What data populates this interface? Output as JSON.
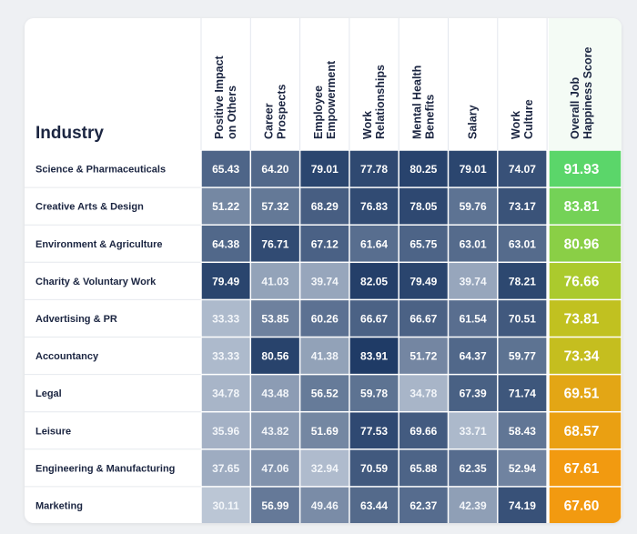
{
  "chart_data": {
    "type": "table",
    "row_header": "Industry",
    "columns": [
      [
        "Positive Impact",
        "on Others"
      ],
      [
        "Career",
        "Prospects"
      ],
      [
        "Employee",
        "Empowerment"
      ],
      [
        "Work",
        "Relationships"
      ],
      [
        "Mental Health",
        "Benefits"
      ],
      [
        "Salary"
      ],
      [
        "Work",
        "Culture"
      ]
    ],
    "score_column": [
      "Overall Job",
      "Happiness Score"
    ],
    "rows": [
      {
        "industry": "Science & Pharmaceuticals",
        "values": [
          "65.43",
          "64.20",
          "79.01",
          "77.78",
          "80.25",
          "79.01",
          "74.07"
        ],
        "score": "91.93"
      },
      {
        "industry": "Creative Arts & Design",
        "values": [
          "51.22",
          "57.32",
          "68.29",
          "76.83",
          "78.05",
          "59.76",
          "73.17"
        ],
        "score": "83.81"
      },
      {
        "industry": "Environment & Agriculture",
        "values": [
          "64.38",
          "76.71",
          "67.12",
          "61.64",
          "65.75",
          "63.01",
          "63.01"
        ],
        "score": "80.96"
      },
      {
        "industry": "Charity & Voluntary Work",
        "values": [
          "79.49",
          "41.03",
          "39.74",
          "82.05",
          "79.49",
          "39.74",
          "78.21"
        ],
        "score": "76.66"
      },
      {
        "industry": "Advertising & PR",
        "values": [
          "33.33",
          "53.85",
          "60.26",
          "66.67",
          "66.67",
          "61.54",
          "70.51"
        ],
        "score": "73.81"
      },
      {
        "industry": "Accountancy",
        "values": [
          "33.33",
          "80.56",
          "41.38",
          "83.91",
          "51.72",
          "64.37",
          "59.77"
        ],
        "score": "73.34"
      },
      {
        "industry": "Legal",
        "values": [
          "34.78",
          "43.48",
          "56.52",
          "59.78",
          "34.78",
          "67.39",
          "71.74"
        ],
        "score": "69.51"
      },
      {
        "industry": "Leisure",
        "values": [
          "35.96",
          "43.82",
          "51.69",
          "77.53",
          "69.66",
          "33.71",
          "58.43"
        ],
        "score": "68.57"
      },
      {
        "industry": "Engineering & Manufacturing",
        "values": [
          "37.65",
          "47.06",
          "32.94",
          "70.59",
          "65.88",
          "62.35",
          "52.94"
        ],
        "score": "67.61"
      },
      {
        "industry": "Marketing",
        "values": [
          "30.11",
          "56.99",
          "49.46",
          "63.44",
          "62.37",
          "42.39",
          "74.19"
        ],
        "score": "67.60"
      }
    ]
  },
  "colors": {
    "text_dark": "#1b2541",
    "score_header": "#e5245e",
    "cell_low": "#bcc7d6",
    "cell_high": "#1f3b66",
    "score_high": "#5bd66a",
    "score_mid": "#b8c823",
    "score_low": "#f29a10"
  }
}
